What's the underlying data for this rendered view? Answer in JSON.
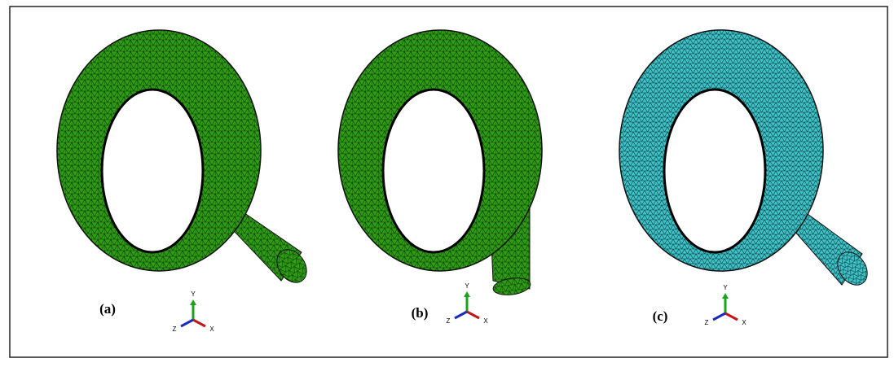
{
  "panels": [
    {
      "label": "(a)",
      "axes": {
        "y": "Y",
        "z": "Z",
        "x": "X"
      }
    },
    {
      "label": "(b)",
      "axes": {
        "y": "Y",
        "z": "Z",
        "x": "X"
      }
    },
    {
      "label": "(c)",
      "axes": {
        "y": "Y",
        "z": "Z",
        "x": "X"
      }
    }
  ]
}
